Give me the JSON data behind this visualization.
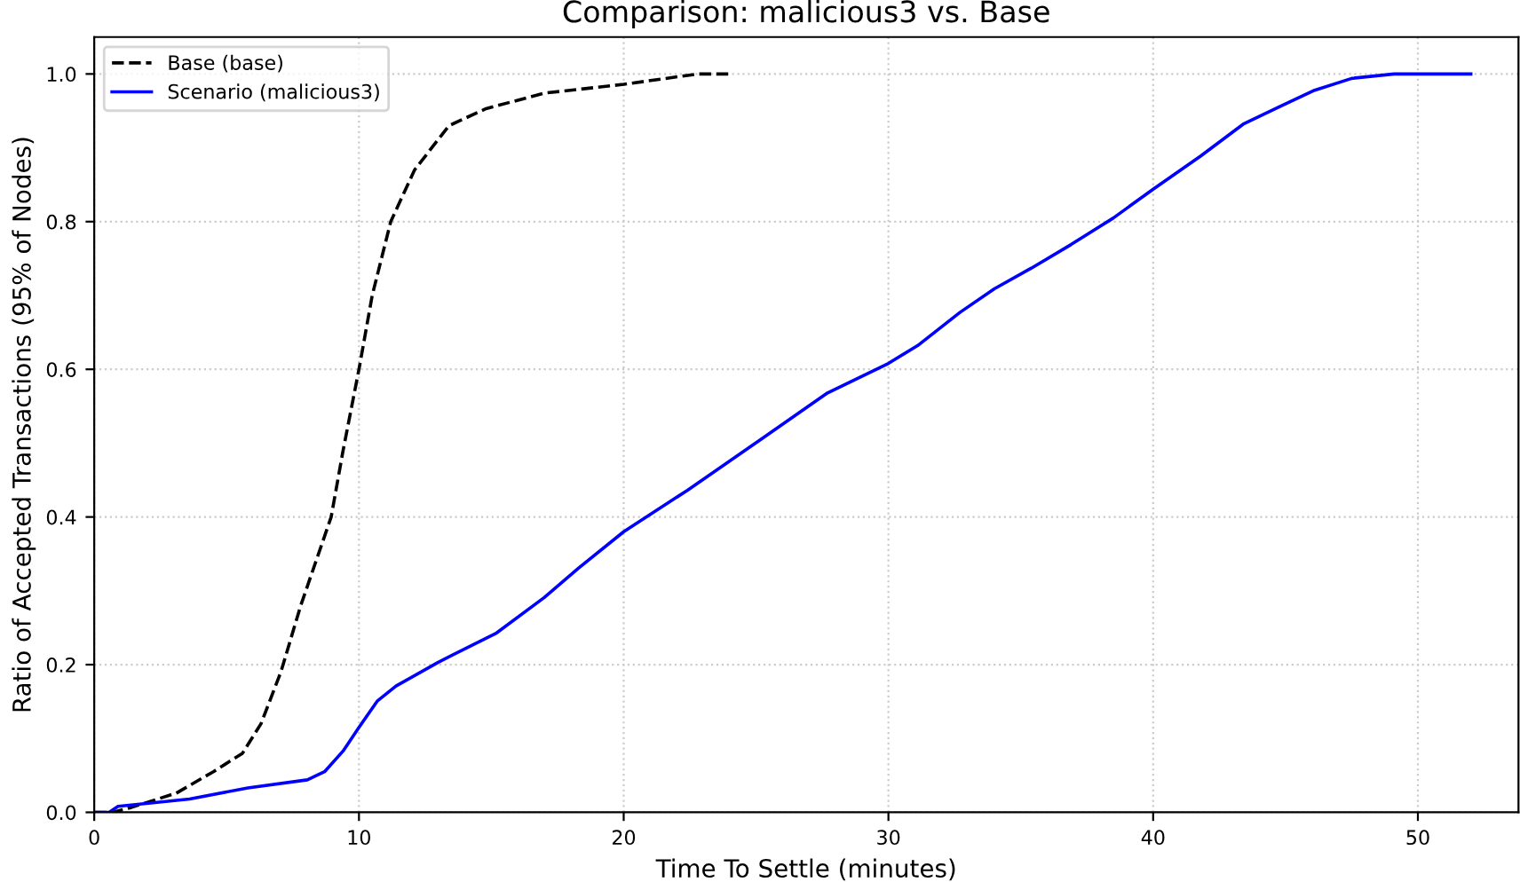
{
  "chart_data": {
    "type": "line",
    "title": "Comparison: malicious3 vs. Base",
    "xlabel": "Time To Settle (minutes)",
    "ylabel": "Ratio of Accepted Transactions (95% of Nodes)",
    "xlim": [
      0,
      53.8
    ],
    "ylim": [
      0,
      1.05
    ],
    "xticks": [
      0,
      10,
      20,
      30,
      40,
      50
    ],
    "yticks": [
      {
        "value": 0,
        "label": "0.0"
      },
      0.2,
      0.4,
      0.6,
      0.8,
      {
        "value": 1,
        "label": "1.0"
      }
    ],
    "grid": true,
    "legend": "top left",
    "marker": "none",
    "series": [
      {
        "name": "Base (base)",
        "color": "#000000",
        "line_style": "dashed",
        "x": [
          0,
          0.7,
          1.34,
          3.1,
          4.5,
          5.6,
          6.3,
          7.05,
          7.8,
          8.95,
          9.4,
          10,
          10.5,
          11.2,
          12.1,
          13.4,
          14.8,
          17,
          20,
          22.8,
          24.05
        ],
        "values": [
          0,
          0,
          0.006,
          0.026,
          0.055,
          0.08,
          0.12,
          0.19,
          0.28,
          0.4,
          0.49,
          0.6,
          0.7,
          0.8,
          0.87,
          0.93,
          0.953,
          0.974,
          0.986,
          1.0,
          1.0
        ]
      },
      {
        "name": "Scenario (malicious3)",
        "color": "#0000ff",
        "line_style": "solid",
        "x": [
          0,
          0.56,
          0.9,
          3.6,
          5.8,
          8.05,
          8.7,
          9.4,
          10,
          10.7,
          11.4,
          12.98,
          15.2,
          17,
          18.3,
          20,
          22.4,
          25.3,
          27.7,
          30,
          31.1,
          32.7,
          34,
          35.4,
          36.9,
          38.5,
          40,
          41.8,
          43.4,
          44.8,
          46.1,
          47.5,
          49.1,
          52
        ],
        "values": [
          0,
          0,
          0.008,
          0.018,
          0.033,
          0.044,
          0.055,
          0.083,
          0.115,
          0.151,
          0.171,
          0.203,
          0.243,
          0.291,
          0.331,
          0.38,
          0.436,
          0.508,
          0.568,
          0.608,
          0.632,
          0.677,
          0.709,
          0.737,
          0.769,
          0.805,
          0.844,
          0.889,
          0.932,
          0.956,
          0.978,
          0.994,
          1.0,
          1.0
        ]
      }
    ]
  }
}
